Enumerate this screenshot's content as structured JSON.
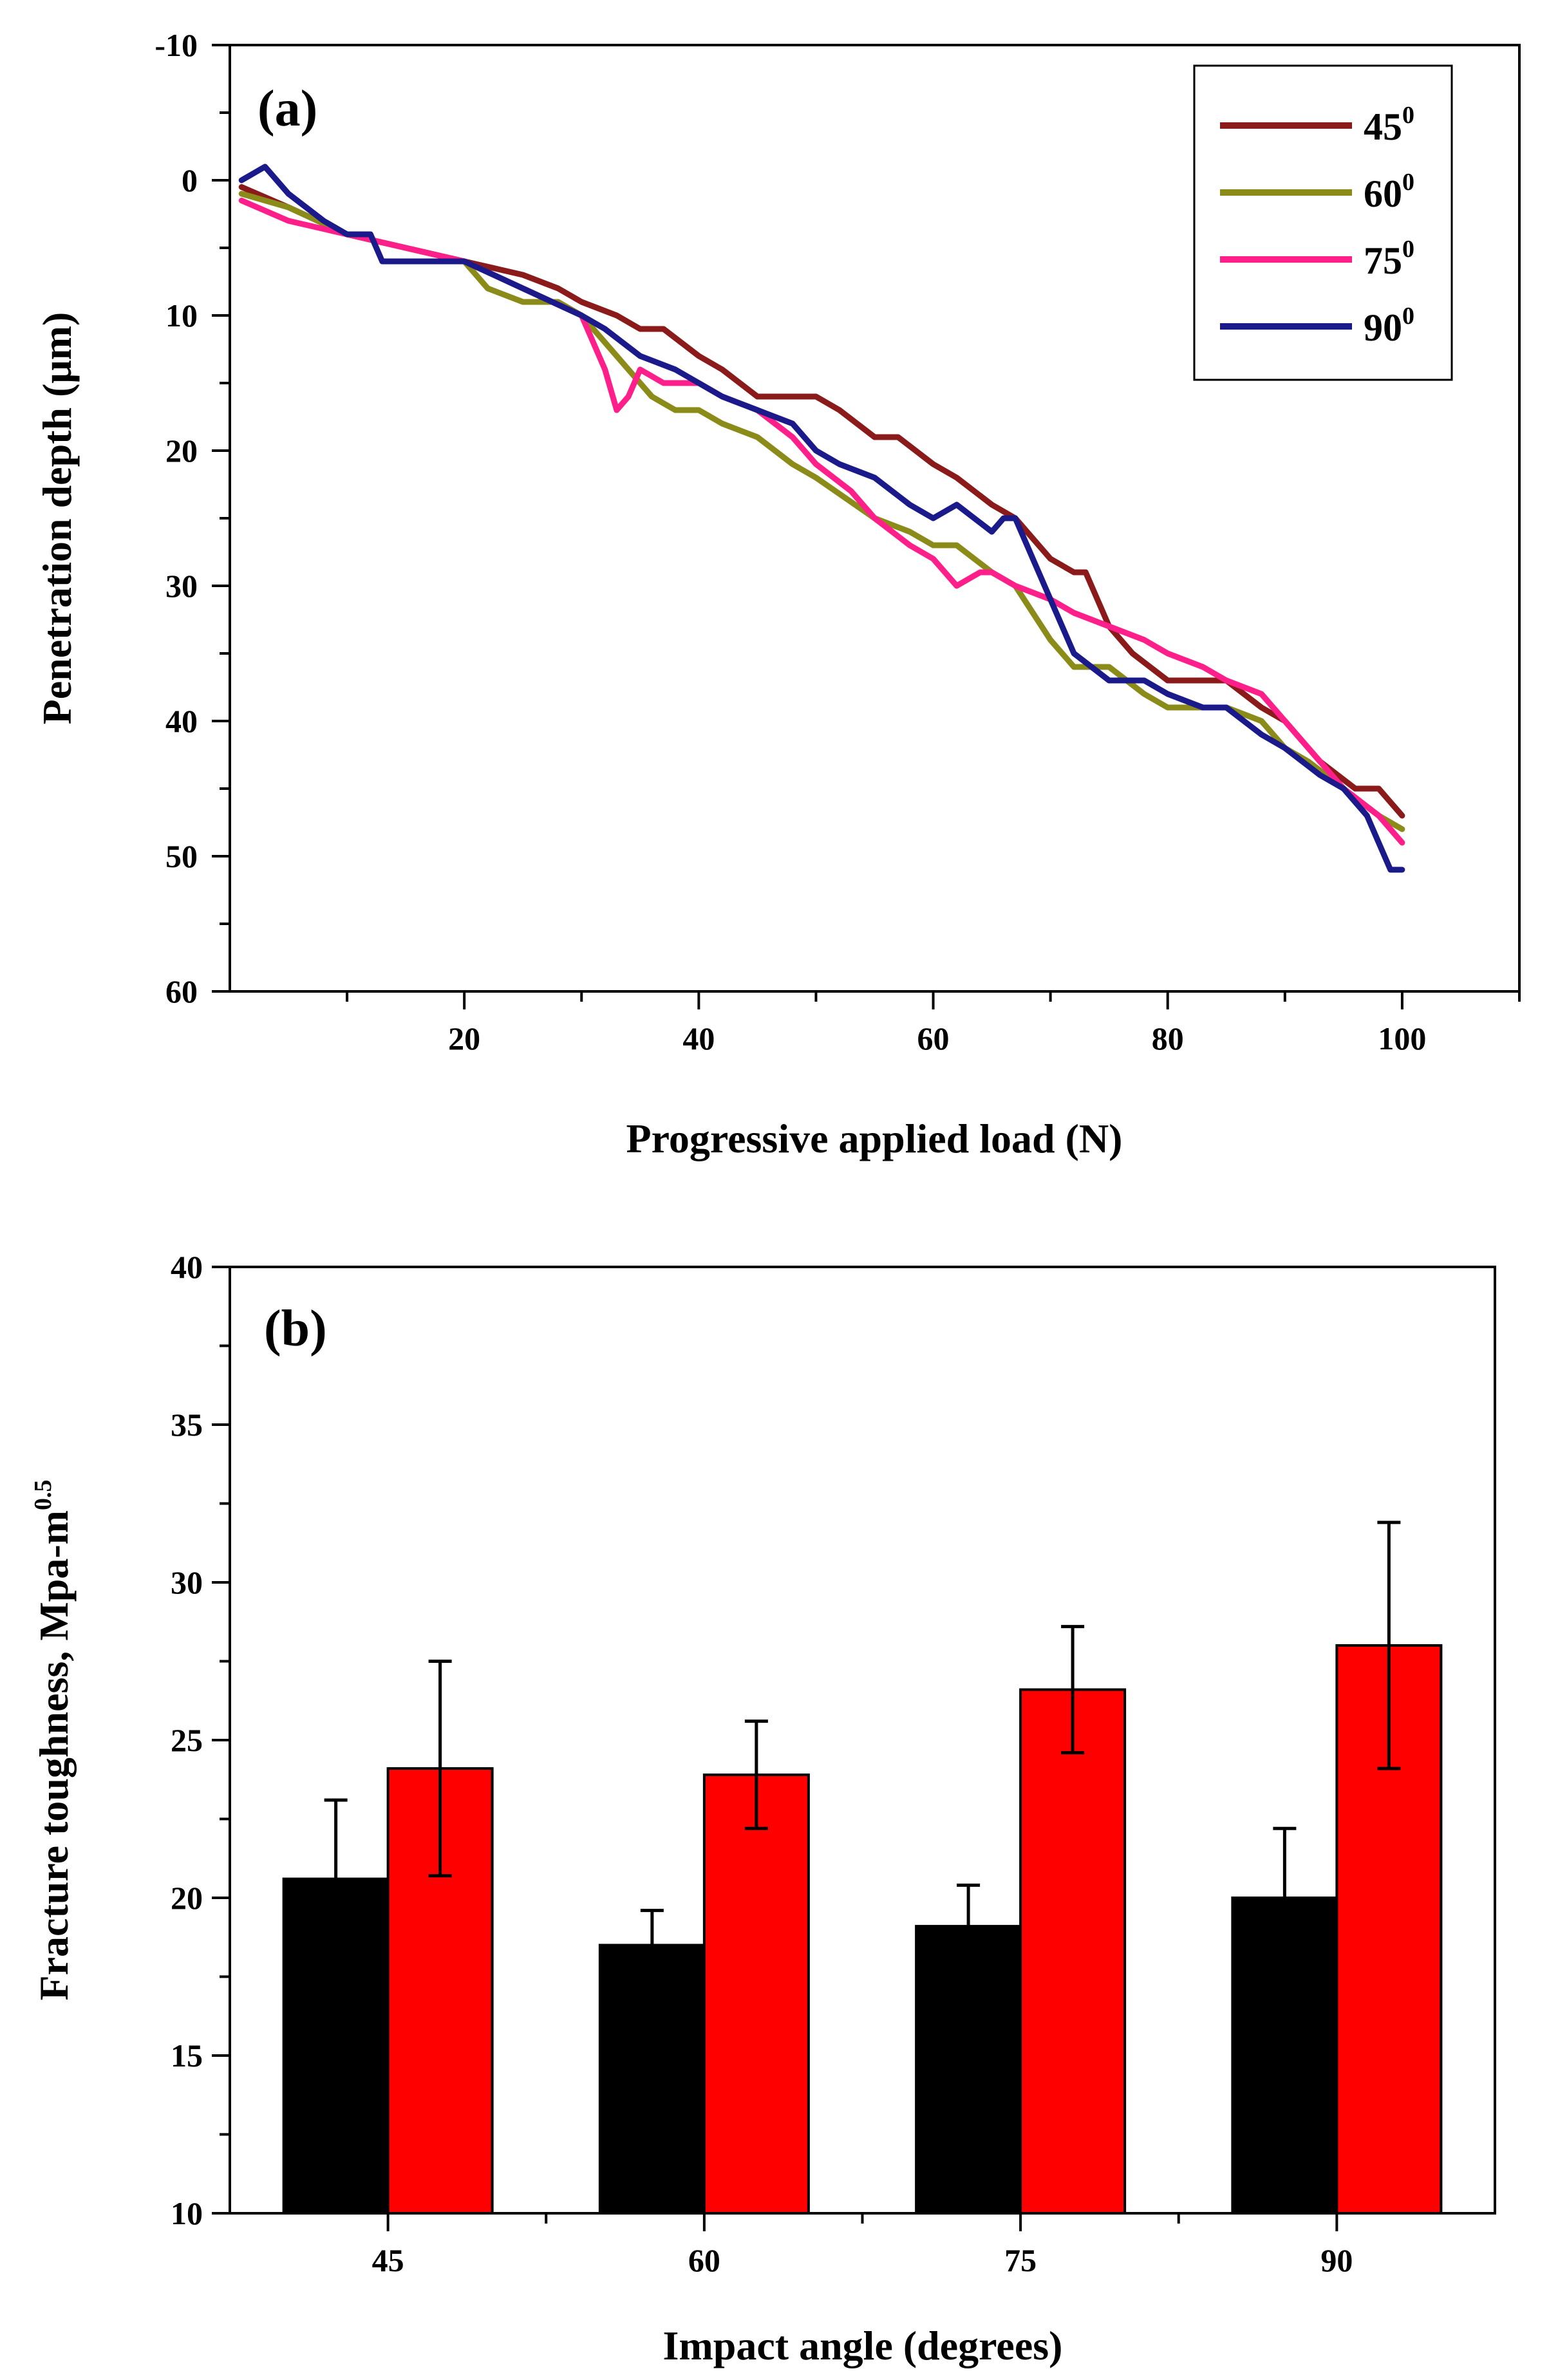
{
  "chart_data": [
    {
      "type": "line",
      "panel_label": "(a)",
      "xlabel": "Progressive applied load (N)",
      "ylabel": "Penetration depth (μm)",
      "xlim": [
        0,
        110
      ],
      "ylim": [
        -10,
        60
      ],
      "y_inverted": true,
      "x_ticks": [
        20,
        40,
        60,
        80,
        100
      ],
      "y_ticks": [
        -10,
        0,
        10,
        20,
        30,
        40,
        50,
        60
      ],
      "legend_position": "top-right",
      "series": [
        {
          "name": "45",
          "name_sup": "0",
          "color": "#8b1a1a",
          "x": [
            1,
            5,
            10,
            15,
            20,
            25,
            28,
            30,
            33,
            35,
            37,
            40,
            42,
            45,
            48,
            50,
            52,
            55,
            57,
            60,
            62,
            65,
            67,
            70,
            72,
            73,
            75,
            77,
            80,
            83,
            85,
            88,
            90,
            93,
            96,
            98,
            100
          ],
          "y": [
            0.5,
            2,
            4,
            5,
            6,
            7,
            8,
            9,
            10,
            11,
            11,
            13,
            14,
            16,
            16,
            16,
            17,
            19,
            19,
            21,
            22,
            24,
            25,
            28,
            29,
            29,
            33,
            35,
            37,
            37,
            37,
            39,
            40,
            43,
            45,
            45,
            47
          ]
        },
        {
          "name": "60",
          "name_sup": "0",
          "color": "#8b8b1a",
          "x": [
            1,
            5,
            10,
            15,
            20,
            22,
            25,
            28,
            30,
            32,
            34,
            36,
            38,
            40,
            42,
            45,
            48,
            50,
            55,
            58,
            60,
            62,
            65,
            67,
            70,
            72,
            75,
            78,
            80,
            85,
            88,
            90,
            92,
            95,
            98,
            100
          ],
          "y": [
            1,
            2,
            4,
            5,
            6,
            8,
            9,
            9,
            10,
            12,
            14,
            16,
            17,
            17,
            18,
            19,
            21,
            22,
            25,
            26,
            27,
            27,
            29,
            30,
            34,
            36,
            36,
            38,
            39,
            39,
            40,
            42,
            43,
            45,
            47,
            48
          ]
        },
        {
          "name": "75",
          "name_sup": "0",
          "color": "#ff1f8a",
          "x": [
            1,
            5,
            10,
            15,
            20,
            25,
            30,
            31,
            32,
            33,
            34,
            35,
            37,
            40,
            42,
            45,
            48,
            50,
            53,
            55,
            58,
            60,
            62,
            64,
            65,
            67,
            70,
            72,
            75,
            78,
            80,
            83,
            85,
            88,
            90,
            92,
            95,
            98,
            100
          ],
          "y": [
            1.5,
            3,
            4,
            5,
            6,
            8,
            10,
            12,
            14,
            17,
            16,
            14,
            15,
            15,
            16,
            17,
            19,
            21,
            23,
            25,
            27,
            28,
            30,
            29,
            29,
            30,
            31,
            32,
            33,
            34,
            35,
            36,
            37,
            38,
            40,
            42,
            45,
            47,
            49
          ]
        },
        {
          "name": "90",
          "name_sup": "0",
          "color": "#1a1a8b",
          "x": [
            1,
            2,
            3,
            5,
            8,
            10,
            12,
            13,
            15,
            18,
            20,
            25,
            30,
            32,
            35,
            38,
            40,
            42,
            45,
            48,
            50,
            52,
            55,
            58,
            60,
            62,
            65,
            66,
            67,
            68,
            70,
            72,
            75,
            78,
            80,
            83,
            85,
            88,
            90,
            93,
            95,
            97,
            98,
            99,
            100
          ],
          "y": [
            0,
            -0.5,
            -1,
            1,
            3,
            4,
            4,
            6,
            6,
            6,
            6,
            8,
            10,
            11,
            13,
            14,
            15,
            16,
            17,
            18,
            20,
            21,
            22,
            24,
            25,
            24,
            26,
            25,
            25,
            27,
            31,
            35,
            37,
            37,
            38,
            39,
            39,
            41,
            42,
            44,
            45,
            47,
            49,
            51,
            51
          ]
        }
      ]
    },
    {
      "type": "bar",
      "panel_label": "(b)",
      "xlabel": "Impact angle (degrees)",
      "ylabel": "Fracture toughness, Mpa-m",
      "ylabel_sup": "0.5",
      "ylim": [
        10,
        40
      ],
      "y_ticks": [
        10,
        15,
        20,
        25,
        30,
        35,
        40
      ],
      "categories": [
        "45",
        "60",
        "75",
        "90"
      ],
      "series": [
        {
          "color": "#000000",
          "values": [
            20.6,
            18.5,
            19.1,
            20.0
          ],
          "errors": [
            2.5,
            1.1,
            1.3,
            2.2
          ]
        },
        {
          "color": "#ff0000",
          "values": [
            24.1,
            23.9,
            26.6,
            28.0
          ],
          "errors": [
            3.4,
            1.7,
            2.0,
            3.9
          ]
        }
      ]
    }
  ]
}
